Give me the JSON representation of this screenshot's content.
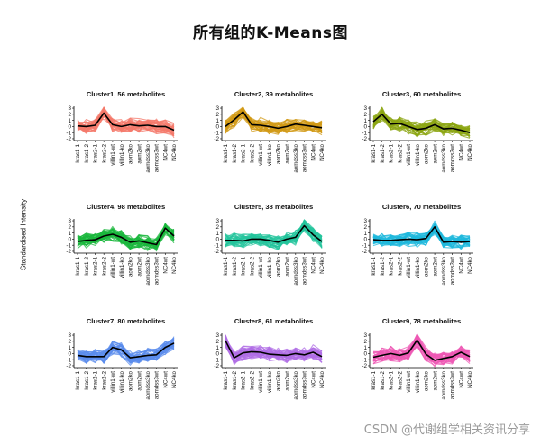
{
  "title": "所有组的K-Means图",
  "watermark": "CSDN @代谢组学相关资讯分享",
  "chart_data": {
    "type": "line",
    "ylabel": "Standardised Intensity",
    "categories": [
      "kras1-1",
      "kras1-2",
      "kras2-1",
      "kras2-2",
      "villin1-wt",
      "villin1-ko",
      "aom2ko",
      "aom2wt",
      "aomdss3ko",
      "aomdss3wt",
      "NC4wt",
      "NC4ko"
    ],
    "yticks": [
      -2,
      -1,
      0,
      1,
      2,
      3
    ],
    "ylim": [
      -2.3,
      3.3
    ],
    "panels": [
      {
        "title": "Cluster1, 56 metabolites",
        "color": "#f47a6b",
        "centroid": [
          0.1,
          0.0,
          0.2,
          2.2,
          0.3,
          0.0,
          0.3,
          0.1,
          0.2,
          0.0,
          0.0,
          -0.6
        ]
      },
      {
        "title": "Cluster2, 39 metabolites",
        "color": "#d29a16",
        "centroid": [
          0.0,
          1.1,
          2.4,
          0.3,
          0.2,
          0.0,
          -0.3,
          0.0,
          0.4,
          0.2,
          0.0,
          -0.2
        ]
      },
      {
        "title": "Cluster3, 60 metabolites",
        "color": "#8ca513",
        "centroid": [
          0.8,
          2.0,
          0.4,
          0.5,
          0.0,
          -0.5,
          -0.3,
          0.3,
          -0.4,
          -0.3,
          -0.6,
          -1.0
        ]
      },
      {
        "title": "Cluster4, 98 metabolites",
        "color": "#1ab73c",
        "centroid": [
          -0.4,
          -0.2,
          -0.1,
          0.5,
          0.8,
          0.3,
          -0.5,
          -0.3,
          -0.6,
          -0.9,
          1.8,
          0.5
        ]
      },
      {
        "title": "Cluster5, 38 metabolites",
        "color": "#24c49c",
        "centroid": [
          -0.2,
          -0.2,
          -0.3,
          0.0,
          0.0,
          -0.2,
          -0.5,
          0.0,
          0.3,
          2.2,
          0.7,
          -0.4
        ]
      },
      {
        "title": "Cluster6, 70 metabolites",
        "color": "#1fb8dc",
        "centroid": [
          -0.1,
          -0.2,
          -0.2,
          -0.1,
          0.0,
          -0.1,
          0.1,
          2.0,
          -0.5,
          -0.4,
          -0.5,
          -0.4
        ]
      },
      {
        "title": "Cluster7, 80 metabolites",
        "color": "#5b8cec",
        "centroid": [
          -0.3,
          -0.5,
          -0.5,
          -0.5,
          1.0,
          0.6,
          -0.7,
          -0.5,
          -0.3,
          -0.2,
          1.0,
          1.7
        ]
      },
      {
        "title": "Cluster8, 61 metabolites",
        "color": "#b06ee6",
        "centroid": [
          2.1,
          -0.7,
          0.1,
          0.3,
          0.2,
          -0.1,
          -0.2,
          -0.3,
          0.0,
          -0.2,
          0.2,
          -0.5
        ]
      },
      {
        "title": "Cluster9, 78 metabolites",
        "color": "#ee58b4",
        "centroid": [
          -0.6,
          -0.3,
          0.0,
          -0.3,
          0.1,
          2.2,
          -0.1,
          -1.1,
          -0.8,
          -0.5,
          0.2,
          -0.5
        ]
      }
    ]
  }
}
